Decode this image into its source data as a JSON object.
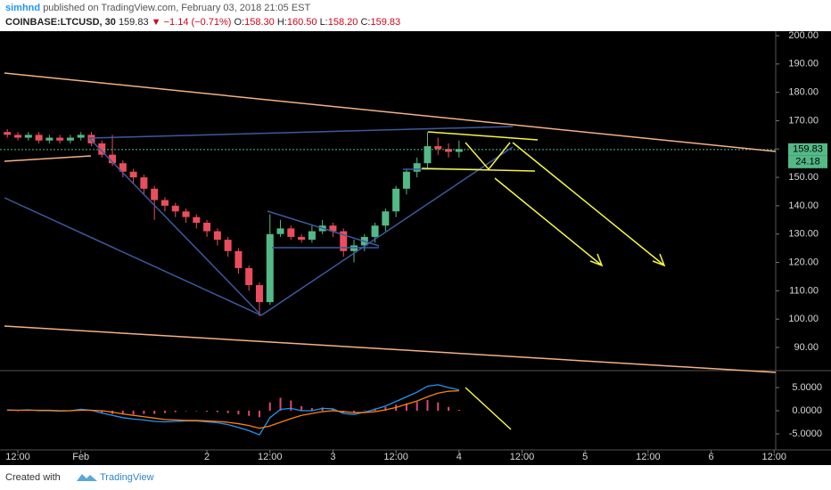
{
  "header": {
    "user": "simhnd",
    "published": "published on TradingView.com, February 03, 2018 21:05 EST",
    "symbol": "COINBASE:LTCUSD, 30",
    "last": "159.83",
    "change": "▼ −1.14 (−0.71%)",
    "ohlc": [
      {
        "label": "O:",
        "value": "158.30"
      },
      {
        "label": "H:",
        "value": "160.50"
      },
      {
        "label": "L:",
        "value": "158.20"
      },
      {
        "label": "C:",
        "value": "159.83"
      }
    ]
  },
  "footer": {
    "created": "Created with",
    "brand": "TradingView"
  },
  "chart_data": [
    {
      "type": "candlestick",
      "up_color": "#53b987",
      "down_color": "#eb4d5c",
      "grid": false,
      "x": [
        10,
        12,
        14,
        16,
        18,
        20,
        22,
        24,
        26,
        28,
        30,
        32,
        34,
        36,
        38,
        40,
        42,
        44,
        46,
        48,
        50,
        52,
        54,
        56,
        58,
        60,
        62,
        64,
        66,
        68,
        70,
        72,
        74,
        76,
        78,
        80,
        82,
        84,
        86,
        88,
        90,
        92,
        94,
        96
      ],
      "open": [
        166,
        165,
        164,
        165,
        163,
        164,
        163,
        164,
        165,
        162,
        158,
        155,
        152,
        150,
        146,
        142,
        140,
        138,
        136,
        134,
        131,
        128,
        124,
        118,
        112,
        106,
        130,
        132,
        129,
        128,
        131,
        133,
        131,
        124,
        126,
        129,
        133,
        138,
        146,
        152,
        155,
        161,
        160,
        159
      ],
      "high": [
        167,
        166,
        166,
        166,
        165,
        165,
        165,
        166,
        166,
        163,
        165,
        156,
        153,
        151,
        147,
        143,
        141,
        139,
        137,
        135,
        132,
        129,
        125,
        119,
        113,
        137,
        135,
        133,
        130,
        133,
        135,
        134,
        132,
        128,
        130,
        134,
        139,
        147,
        153,
        157,
        166,
        164,
        162,
        163
      ],
      "low": [
        164,
        163,
        163,
        162,
        162,
        162,
        162,
        163,
        161,
        157,
        154,
        150,
        148,
        144,
        135,
        138,
        136,
        134,
        132,
        129,
        126,
        122,
        116,
        110,
        101,
        105,
        129,
        128,
        127,
        127,
        130,
        129,
        122,
        120,
        124,
        127,
        131,
        136,
        144,
        150,
        153,
        158,
        157,
        157
      ],
      "close": [
        165,
        164,
        165,
        163,
        164,
        163,
        164,
        165,
        162,
        158,
        155,
        152,
        150,
        146,
        142,
        140,
        138,
        136,
        134,
        131,
        128,
        124,
        118,
        112,
        106,
        130,
        132,
        129,
        128,
        131,
        133,
        131,
        124,
        126,
        129,
        133,
        138,
        146,
        152,
        155,
        161,
        160,
        159,
        160
      ],
      "last_value": 159.83,
      "last_label": "159.83",
      "aux_label": "24.18",
      "xlim": [
        8.6,
        156.3
      ],
      "xticks": [
        {
          "value": 12,
          "label": "12:00"
        },
        {
          "value": 24,
          "label": "Feb"
        },
        {
          "value": 48,
          "label": "2"
        },
        {
          "value": 60,
          "label": "12:00"
        },
        {
          "value": 72,
          "label": "3"
        },
        {
          "value": 84,
          "label": "12:00"
        },
        {
          "value": 96,
          "label": "4"
        },
        {
          "value": 108,
          "label": "12:00"
        },
        {
          "value": 120,
          "label": "5"
        },
        {
          "value": 132,
          "label": "12:00"
        },
        {
          "value": 144,
          "label": "6"
        },
        {
          "value": 156,
          "label": "12:00"
        }
      ],
      "ylim": [
        82.15,
        201.57
      ],
      "yticks": [
        {
          "value": 200,
          "label": "200.00"
        },
        {
          "value": 190,
          "label": "190.00"
        },
        {
          "value": 180,
          "label": "180.00"
        },
        {
          "value": 170,
          "label": "170.00"
        },
        {
          "value": 160,
          "label": "160.00"
        },
        {
          "value": 150,
          "label": "150.00"
        },
        {
          "value": 140,
          "label": "140.00"
        },
        {
          "value": 130,
          "label": "130.00"
        },
        {
          "value": 120,
          "label": "120.00"
        },
        {
          "value": 110,
          "label": "110.00"
        },
        {
          "value": 100,
          "label": "100.00"
        },
        {
          "value": 90,
          "label": "90.00"
        }
      ]
    },
    {
      "type": "macd",
      "histogram_color": "#e0457b",
      "series": [
        {
          "color": "#2196f3",
          "values": [
            0.2,
            0.1,
            0.2,
            0,
            0,
            -0.1,
            0,
            0.3,
            0.1,
            -0.5,
            -1,
            -1.5,
            -1.8,
            -2,
            -2.3,
            -2.4,
            -2.3,
            -2.2,
            -2.2,
            -2.4,
            -2.6,
            -3,
            -3.6,
            -4.3,
            -5.2,
            -1.5,
            0.3,
            0.5,
            0,
            0,
            0.5,
            0.4,
            -0.6,
            -0.8,
            -0.3,
            0.3,
            1,
            2,
            3,
            4,
            5.3,
            5.6,
            5,
            4.5
          ]
        },
        {
          "color": "#ff7f0e",
          "values": [
            0.1,
            0.1,
            0.1,
            0.1,
            0.1,
            0,
            0,
            0.1,
            0.1,
            0,
            -0.3,
            -0.7,
            -1,
            -1.3,
            -1.6,
            -1.9,
            -2,
            -2.1,
            -2.1,
            -2.2,
            -2.3,
            -2.5,
            -2.8,
            -3.2,
            -3.8,
            -3.3,
            -2.5,
            -1.7,
            -1,
            -0.6,
            -0.2,
            0,
            -0.2,
            -0.4,
            -0.4,
            -0.2,
            0.2,
            0.7,
            1.4,
            2.1,
            3,
            3.8,
            4.2,
            4.3
          ]
        }
      ],
      "histogram": [
        0.1,
        0,
        0.1,
        -0.1,
        -0.1,
        -0.1,
        0,
        0.2,
        0,
        -0.5,
        -0.7,
        -0.8,
        -0.8,
        -0.7,
        -0.7,
        -0.5,
        -0.3,
        -0.1,
        -0.1,
        -0.2,
        -0.3,
        -0.5,
        -0.8,
        -1.1,
        -1.4,
        1.8,
        2.8,
        2.2,
        1,
        0.6,
        0.7,
        0.4,
        -0.4,
        -0.4,
        0.1,
        0.5,
        0.8,
        1.3,
        1.6,
        1.9,
        2.3,
        1.8,
        0.8,
        0.2
      ],
      "ylim": [
        -8.46,
        8.27
      ],
      "yticks": [
        {
          "value": 5,
          "label": "5.0000"
        },
        {
          "value": 0,
          "label": "0.0000"
        },
        {
          "value": -5,
          "label": "-5.0000"
        }
      ]
    }
  ]
}
